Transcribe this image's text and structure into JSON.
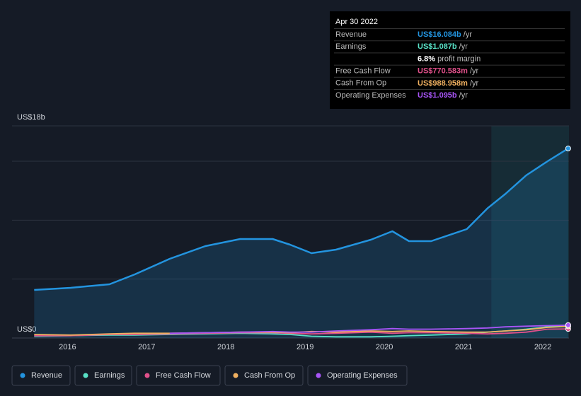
{
  "chart_data": {
    "type": "line",
    "x": [
      2015.58,
      2016.04,
      2016.53,
      2016.85,
      2017.29,
      2017.74,
      2018.18,
      2018.59,
      2018.81,
      2019.08,
      2019.39,
      2019.83,
      2020.1,
      2020.31,
      2020.59,
      2021.04,
      2021.3,
      2021.53,
      2021.79,
      2022.06,
      2022.32
    ],
    "series": [
      {
        "name": "Revenue",
        "color": "#2394df",
        "values": [
          4.08,
          4.26,
          4.56,
          5.4,
          6.72,
          7.8,
          8.4,
          8.4,
          7.92,
          7.2,
          7.5,
          8.34,
          9.06,
          8.22,
          8.22,
          9.24,
          11.0,
          12.24,
          13.8,
          15.0,
          16.084
        ]
      },
      {
        "name": "Earnings",
        "color": "#58e1c6",
        "values": [
          0.15,
          0.2,
          0.25,
          0.25,
          0.3,
          0.35,
          0.4,
          0.35,
          0.3,
          0.15,
          0.1,
          0.1,
          0.15,
          0.2,
          0.25,
          0.35,
          0.5,
          0.6,
          0.75,
          0.95,
          1.087
        ]
      },
      {
        "name": "Free Cash Flow",
        "color": "#e0508a",
        "values": [
          0.2,
          0.2,
          0.3,
          0.3,
          0.35,
          0.4,
          0.45,
          0.45,
          0.4,
          0.35,
          0.4,
          0.5,
          0.4,
          0.45,
          0.45,
          0.4,
          0.35,
          0.4,
          0.5,
          0.75,
          0.771
        ]
      },
      {
        "name": "Cash From Op",
        "color": "#f0b060",
        "values": [
          0.3,
          0.25,
          0.35,
          0.4,
          0.4,
          0.45,
          0.5,
          0.5,
          0.45,
          0.55,
          0.5,
          0.6,
          0.55,
          0.6,
          0.55,
          0.5,
          0.5,
          0.6,
          0.7,
          0.9,
          0.989
        ]
      },
      {
        "name": "Operating Expenses",
        "color": "#a855f7",
        "values": [
          null,
          null,
          null,
          null,
          0.4,
          0.45,
          0.5,
          0.55,
          0.5,
          0.5,
          0.6,
          0.7,
          0.8,
          0.75,
          0.75,
          0.8,
          0.85,
          0.95,
          1.0,
          1.05,
          1.095
        ]
      }
    ],
    "xlim": [
      2015.3,
      2022.33
    ],
    "xticks": [
      2016,
      2017,
      2018,
      2019,
      2020,
      2021,
      2022
    ],
    "ylim": [
      0,
      18
    ],
    "yticks": [
      {
        "value": 0,
        "label": "US$0"
      },
      {
        "value": 18,
        "label": "US$18b"
      }
    ],
    "ygrid": [
      5,
      10,
      15,
      18
    ],
    "highlight_from": 2021.35,
    "tooltip": {
      "date": "Apr 30 2022",
      "rows": [
        {
          "label": "Revenue",
          "value": "US$16.084b",
          "unit": "/yr"
        },
        {
          "label": "Earnings",
          "value": "US$1.087b",
          "unit": "/yr"
        },
        {
          "label": "Free Cash Flow",
          "value": "US$770.583m",
          "unit": "/yr"
        },
        {
          "label": "Cash From Op",
          "value": "US$988.958m",
          "unit": "/yr"
        },
        {
          "label": "Operating Expenses",
          "value": "US$1.095b",
          "unit": "/yr"
        }
      ],
      "margin": {
        "value": "6.8%",
        "text": "profit margin"
      }
    }
  }
}
